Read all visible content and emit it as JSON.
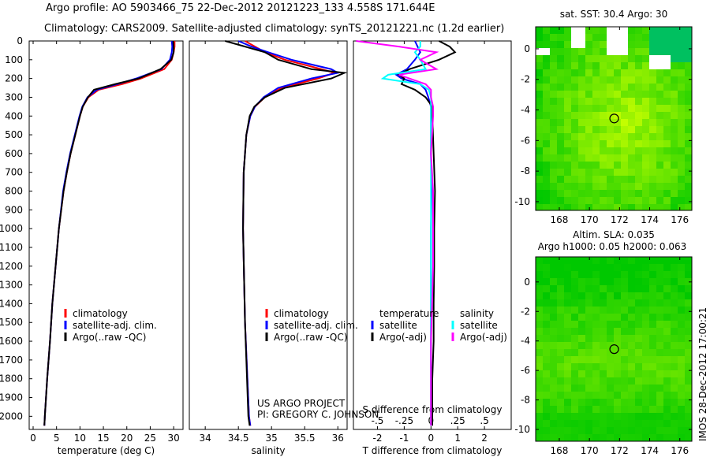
{
  "title": {
    "line1": "Argo profile: AO 5903466_75 22-Dec-2012 20121223_133 4.558S 171.644E",
    "line2": "Climatology: CARS2009. Satellite-adjusted climatology: synTS_20121221.nc (1.2d earlier)"
  },
  "credit": {
    "project": "US ARGO PROJECT",
    "pi": "PI: GREGORY C. JOHNSON",
    "imos": "IMOS 28-Dec-2012 17:00:21"
  },
  "colors": {
    "climatology": "#ff0000",
    "satellite": "#0000ff",
    "argo": "#000000",
    "s_satellite": "#00ffff",
    "s_argo": "#ff00ff"
  },
  "chart_data": [
    {
      "type": "line",
      "xlabel": "temperature (deg C)",
      "ylabel": "",
      "xlim": [
        -0.84,
        32
      ],
      "ylim": [
        2070,
        0
      ],
      "xticks": [
        0,
        5,
        10,
        15,
        20,
        25,
        30
      ],
      "yticks": [
        0,
        100,
        200,
        300,
        400,
        500,
        600,
        700,
        800,
        900,
        1000,
        1100,
        1200,
        1300,
        1400,
        1500,
        1600,
        1700,
        1800,
        1900,
        2000
      ],
      "legend": [
        "climatology",
        "satellite-adj. clim.",
        "Argo(..raw -QC)"
      ],
      "depth": [
        0,
        30,
        60,
        100,
        150,
        200,
        230,
        260,
        300,
        350,
        400,
        500,
        600,
        700,
        800,
        1000,
        1200,
        1400,
        1600,
        1800,
        2000,
        2050
      ],
      "series": [
        {
          "name": "climatology",
          "values": [
            30.2,
            30.2,
            30,
            29.6,
            28,
            23,
            19,
            14,
            11.8,
            10.6,
            10,
            9,
            8,
            7.2,
            6.5,
            5.5,
            4.8,
            4.1,
            3.6,
            3,
            2.5,
            2.4
          ]
        },
        {
          "name": "satellite-adj. clim.",
          "values": [
            29.6,
            29.7,
            29.6,
            29.2,
            27.4,
            22,
            18,
            13.6,
            11.6,
            10.5,
            9.9,
            8.9,
            7.9,
            7.1,
            6.4,
            5.5,
            4.8,
            4.1,
            3.6,
            3,
            2.5,
            2.4
          ]
        },
        {
          "name": "Argo(..raw -QC)",
          "values": [
            29.9,
            30,
            30,
            29.5,
            27.2,
            22.5,
            17.5,
            13,
            11.7,
            10.6,
            10,
            9,
            8,
            7.2,
            6.5,
            5.5,
            4.8,
            4.1,
            3.6,
            3,
            2.5,
            2.4
          ]
        }
      ]
    },
    {
      "type": "line",
      "xlabel": "salinity",
      "xlim": [
        33.76,
        36.14
      ],
      "ylim": [
        2070,
        0
      ],
      "xticks": [
        34,
        34.5,
        35,
        35.5,
        36
      ],
      "legend": [
        "climatology",
        "satellite-adj. clim.",
        "Argo(..raw -QC)"
      ],
      "depth": [
        0,
        30,
        60,
        100,
        150,
        170,
        200,
        250,
        300,
        350,
        400,
        500,
        700,
        1000,
        1500,
        2000,
        2050
      ],
      "series": [
        {
          "name": "climatology",
          "values": [
            34.6,
            34.75,
            34.9,
            35.2,
            35.75,
            35.95,
            35.7,
            35.15,
            34.9,
            34.75,
            34.68,
            34.62,
            34.58,
            34.57,
            34.6,
            34.66,
            34.68
          ]
        },
        {
          "name": "satellite-adj. clim.",
          "values": [
            34.5,
            34.7,
            34.95,
            35.3,
            35.9,
            36,
            35.6,
            35.1,
            34.88,
            34.75,
            34.68,
            34.62,
            34.58,
            34.57,
            34.6,
            34.66,
            34.68
          ]
        },
        {
          "name": "Argo(..raw -QC)",
          "values": [
            34.3,
            34.6,
            34.9,
            35.1,
            35.6,
            36.1,
            35.9,
            35.2,
            34.9,
            34.74,
            34.67,
            34.62,
            34.58,
            34.57,
            34.6,
            34.65,
            34.67
          ]
        }
      ]
    },
    {
      "type": "line",
      "xlabel": "T difference from climatology",
      "x2label": "S difference from climatology",
      "xlim": [
        -2.9,
        3.0
      ],
      "x2lim": [
        -0.725,
        0.75
      ],
      "ylim": [
        2070,
        0
      ],
      "xticks": [
        -2,
        -1,
        0,
        1,
        2
      ],
      "x2ticks": [
        -0.5,
        -0.25,
        0,
        0.25,
        0.5
      ],
      "legend_t": {
        "head": "temperature",
        "items": [
          "satellite",
          "Argo(-adj)"
        ]
      },
      "legend_s": {
        "head": "salinity",
        "items": [
          "satellite",
          "Argo(-adj)"
        ]
      },
      "depth": [
        0,
        30,
        60,
        100,
        150,
        180,
        200,
        230,
        260,
        300,
        350,
        400,
        600,
        800,
        1000,
        1200,
        1400,
        1600,
        1800,
        2000,
        2050
      ],
      "series": [
        {
          "name": "T satellite",
          "axis": "T",
          "values": [
            -0.6,
            -0.5,
            -0.4,
            -0.6,
            -0.9,
            -1.3,
            -1.1,
            -0.4,
            -0.2,
            -0.1,
            0,
            0,
            0,
            0.02,
            0,
            0,
            0,
            0,
            0,
            0,
            0
          ]
        },
        {
          "name": "T Argo(-adj)",
          "axis": "T",
          "values": [
            0.3,
            0.7,
            0.9,
            0.3,
            -0.8,
            -1.2,
            -1.0,
            -1.1,
            -0.6,
            -0.2,
            0.05,
            0.05,
            0.1,
            0.15,
            0.12,
            0.12,
            0.1,
            0.1,
            0.05,
            0.05,
            0.05
          ]
        },
        {
          "name": "S satellite",
          "axis": "S",
          "values": [
            -0.1,
            -0.1,
            -0.15,
            -0.1,
            -0.05,
            -0.4,
            -0.45,
            -0.1,
            -0.02,
            0,
            0,
            0,
            0,
            0,
            0,
            0,
            0,
            0,
            0,
            0,
            0
          ]
        },
        {
          "name": "S Argo(-adj)",
          "axis": "S",
          "values": [
            -0.7,
            -0.3,
            0.05,
            -0.1,
            0.05,
            -0.3,
            -0.2,
            -0.05,
            0,
            0,
            0.02,
            0.02,
            0,
            0.02,
            0.02,
            0.02,
            0.01,
            0,
            0,
            0,
            0
          ]
        }
      ]
    },
    {
      "type": "heatmap",
      "title": "sat. SST: 30.4 Argo: 30",
      "xlim": [
        166.43,
        176.8
      ],
      "ylim": [
        -10.57,
        1.44
      ],
      "xticks": [
        168,
        170,
        172,
        174,
        176
      ],
      "yticks": [
        0,
        -2,
        -4,
        -6,
        -8,
        -10
      ],
      "marker": [
        171.644,
        -4.558
      ]
    },
    {
      "type": "heatmap",
      "title": "Altim. SLA: 0.035",
      "subtitle": "Argo h1000: 0.05 h2000: 0.063",
      "xlim": [
        166.43,
        176.8
      ],
      "ylim": [
        -10.8,
        1.7
      ],
      "xticks": [
        168,
        170,
        172,
        174,
        176
      ],
      "yticks": [
        0,
        -2,
        -4,
        -6,
        -8,
        -10
      ],
      "marker": [
        171.644,
        -4.558
      ]
    }
  ]
}
